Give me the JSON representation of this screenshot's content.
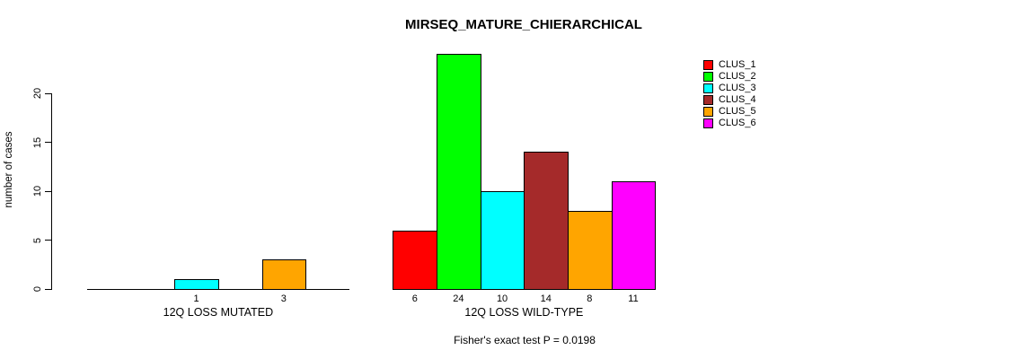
{
  "chart_data": {
    "type": "bar",
    "title": "MIRSEQ_MATURE_CHIERARCHICAL",
    "ylabel": "number of cases",
    "yticks": [
      0,
      5,
      10,
      15,
      20
    ],
    "ylim": [
      0,
      24
    ],
    "grid": false,
    "legend_position": "top-right",
    "legend": [
      {
        "label": "CLUS_1",
        "color": "#FF0000"
      },
      {
        "label": "CLUS_2",
        "color": "#00FF00"
      },
      {
        "label": "CLUS_3",
        "color": "#00FFFF"
      },
      {
        "label": "CLUS_4",
        "color": "#A52A2A"
      },
      {
        "label": "CLUS_5",
        "color": "#FFA500"
      },
      {
        "label": "CLUS_6",
        "color": "#FF00FF"
      }
    ],
    "groups": [
      {
        "label": "12Q LOSS MUTATED",
        "series": [
          "CLUS_1",
          "CLUS_2",
          "CLUS_3",
          "CLUS_4",
          "CLUS_5",
          "CLUS_6"
        ],
        "values": [
          0,
          0,
          1,
          0,
          3,
          0
        ]
      },
      {
        "label": "12Q LOSS WILD-TYPE",
        "series": [
          "CLUS_1",
          "CLUS_2",
          "CLUS_3",
          "CLUS_4",
          "CLUS_5",
          "CLUS_6"
        ],
        "values": [
          6,
          24,
          10,
          14,
          8,
          11
        ]
      }
    ],
    "bar_value_labels": [
      [
        null,
        null,
        "1",
        null,
        "3",
        null
      ],
      [
        "6",
        "24",
        "10",
        "14",
        "8",
        "11"
      ]
    ],
    "annotation": "Fisher's exact test P = 0.0198"
  }
}
